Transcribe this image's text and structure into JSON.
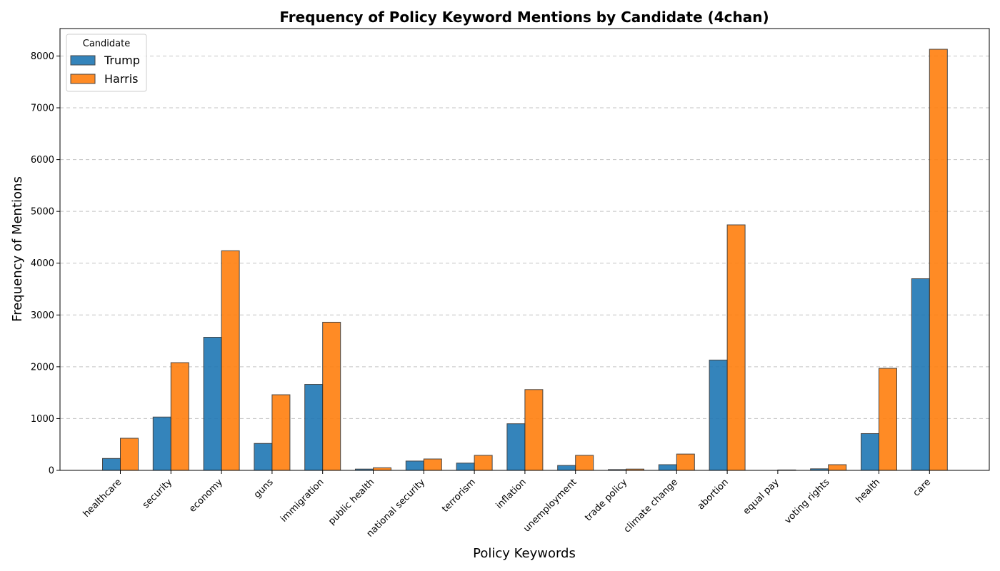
{
  "chart_data": {
    "type": "bar",
    "title": "Frequency of Policy Keyword Mentions by Candidate (4chan)",
    "xlabel": "Policy Keywords",
    "ylabel": "Frequency of Mentions",
    "ylim": [
      0,
      8530
    ],
    "yticks": [
      0,
      1000,
      2000,
      3000,
      4000,
      5000,
      6000,
      7000,
      8000
    ],
    "grid": "y-dashed",
    "legend": {
      "title": "Candidate",
      "placement": "top-left"
    },
    "categories": [
      "healthcare",
      "security",
      "economy",
      "guns",
      "immigration",
      "public health",
      "national security",
      "terrorism",
      "inflation",
      "unemployment",
      "trade policy",
      "climate change",
      "abortion",
      "equal pay",
      "voting rights",
      "health",
      "care"
    ],
    "series": [
      {
        "name": "Trump",
        "color": "#1f77b4",
        "values": [
          230,
          1030,
          2570,
          520,
          1660,
          25,
          180,
          140,
          900,
          95,
          15,
          110,
          2130,
          0,
          30,
          710,
          3700
        ]
      },
      {
        "name": "Harris",
        "color": "#ff7f0e",
        "values": [
          620,
          2080,
          4240,
          1460,
          2860,
          50,
          220,
          290,
          1560,
          290,
          25,
          315,
          4740,
          8,
          110,
          1970,
          8130
        ]
      }
    ]
  }
}
